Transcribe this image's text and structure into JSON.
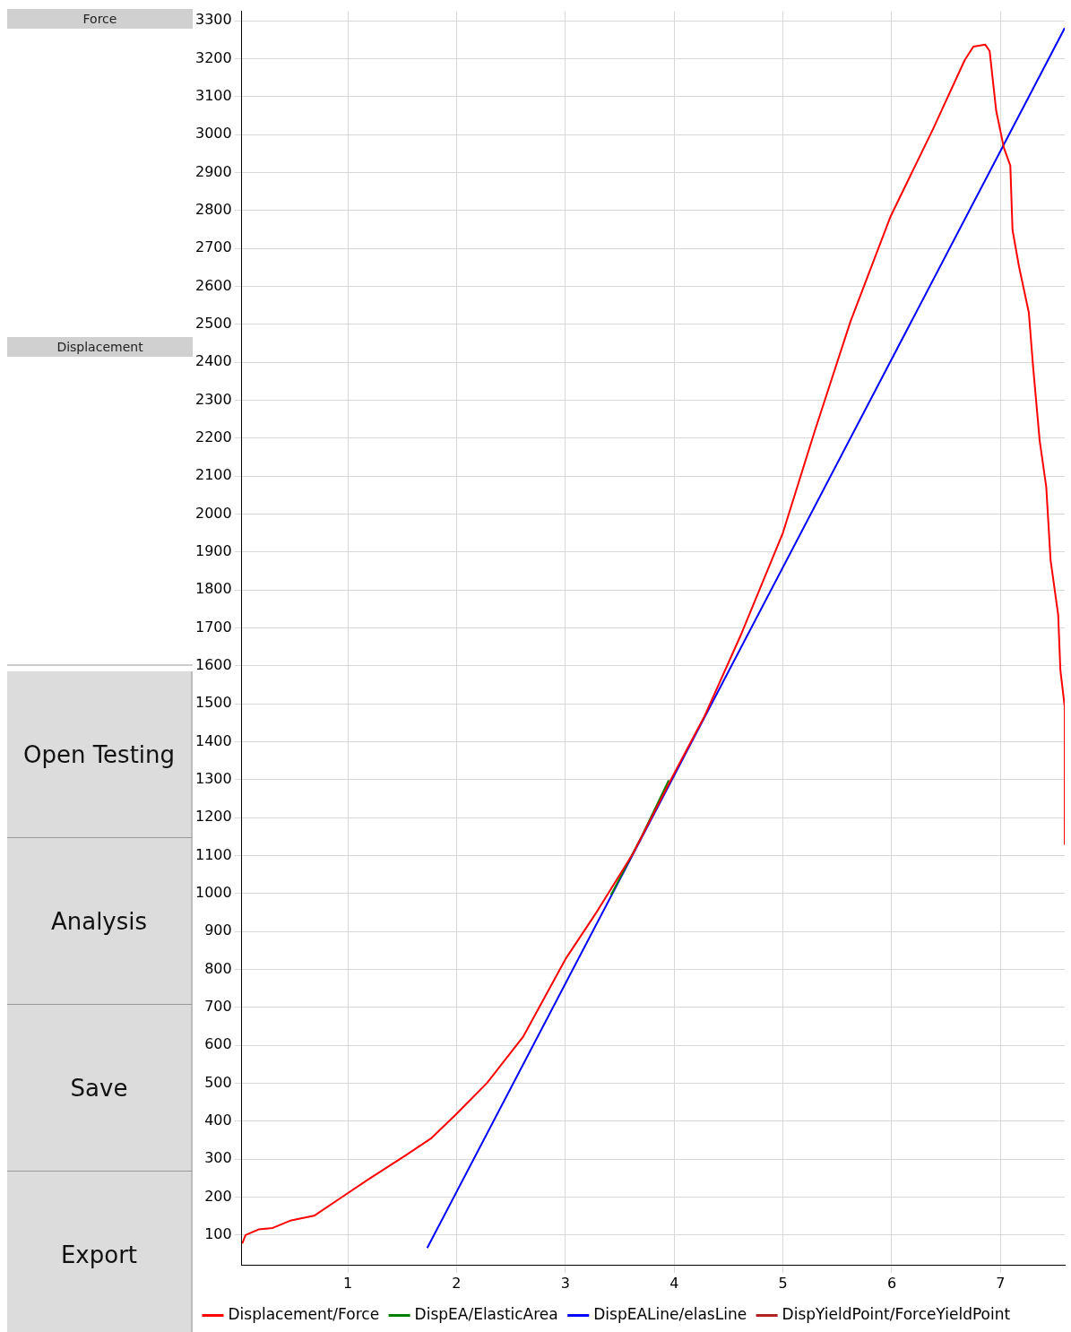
{
  "chart_data": {
    "type": "line",
    "legend": "bottom",
    "grid": true,
    "marker": "none",
    "line_style": "solid",
    "xlim": [
      0.025,
      7.59
    ],
    "xticks": [
      1,
      2,
      3,
      4,
      5,
      6,
      7
    ],
    "ylim": [
      20,
      3325
    ],
    "yticks": [
      100,
      200,
      300,
      400,
      500,
      600,
      700,
      800,
      900,
      1000,
      1100,
      1200,
      1300,
      1400,
      1500,
      1600,
      1700,
      1800,
      1900,
      2000,
      2100,
      2200,
      2300,
      2400,
      2500,
      2600,
      2700,
      2800,
      2900,
      3000,
      3100,
      3200,
      3300
    ],
    "annotations": [
      "Force",
      "Displacement",
      "Open Testing",
      "Analysis",
      "Save",
      "Export"
    ],
    "series": [
      {
        "name": "Displacement/Force",
        "color": "#ff0000",
        "x": [
          0.03,
          0.06,
          0.18,
          0.31,
          0.48,
          0.69,
          0.94,
          1.19,
          1.52,
          1.77,
          1.99,
          2.28,
          2.61,
          3.0,
          3.28,
          3.62,
          3.99,
          4.28,
          4.62,
          5.0,
          5.29,
          5.62,
          5.99,
          6.38,
          6.67,
          6.75,
          6.86,
          6.9,
          6.96,
          7.03,
          7.09,
          7.11,
          7.17,
          7.26,
          7.3,
          7.36,
          7.42,
          7.46,
          7.53,
          7.55,
          7.59,
          7.59
        ],
        "values": [
          78,
          100,
          115,
          119,
          139,
          151,
          199,
          247,
          308,
          356,
          417,
          501,
          622,
          827,
          948,
          1105,
          1311,
          1468,
          1686,
          1951,
          2217,
          2507,
          2785,
          3015,
          3196,
          3232,
          3237,
          3220,
          3063,
          2966,
          2918,
          2749,
          2652,
          2531,
          2386,
          2193,
          2072,
          1879,
          1734,
          1589,
          1492,
          1130
        ]
      },
      {
        "name": "DispEA/ElasticArea",
        "color": "#008000",
        "x": [
          3.42,
          3.7,
          3.95
        ],
        "values": [
          997,
          1150,
          1299
        ]
      },
      {
        "name": "DispEALine/elasLine",
        "color": "#0000ff",
        "x": [
          1.73,
          7.59
        ],
        "values": [
          66,
          3281
        ]
      },
      {
        "name": "DispYieldPoint/ForceYieldPoint",
        "color": "#b22222"
      }
    ]
  }
}
